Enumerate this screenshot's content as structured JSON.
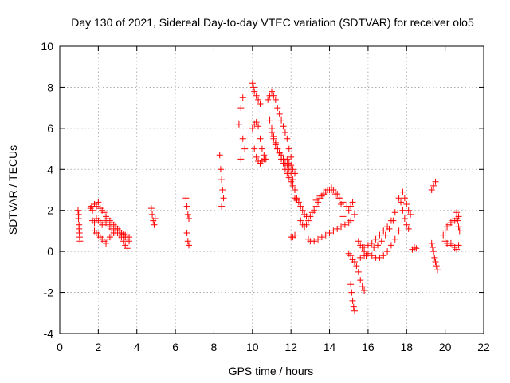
{
  "chart_data": {
    "type": "scatter",
    "title": "Day 130 of 2021, Sidereal Day-to-day VTEC variation (SDTVAR) for receiver olo5",
    "xlabel": "GPS time / hours",
    "ylabel": "SDTVAR / TECUs",
    "xlim": [
      0,
      22
    ],
    "ylim": [
      -4,
      10
    ],
    "xticks": [
      0,
      2,
      4,
      6,
      8,
      10,
      12,
      14,
      16,
      18,
      20,
      22
    ],
    "yticks": [
      -4,
      -2,
      0,
      2,
      4,
      6,
      8,
      10
    ],
    "grid": true,
    "marker": "plus",
    "color": "#ff0000",
    "series": [
      {
        "name": "SDTVAR",
        "x": [
          0.95,
          0.97,
          1.0,
          1.02,
          1.05,
          0.98,
          1.0,
          1.03,
          1.6,
          1.65,
          1.7,
          1.8,
          1.9,
          2.0,
          2.1,
          2.2,
          2.3,
          2.4,
          2.5,
          2.6,
          2.7,
          2.8,
          2.9,
          3.0,
          3.1,
          3.2,
          3.3,
          3.4,
          3.5,
          3.6,
          1.7,
          1.8,
          1.9,
          2.0,
          2.1,
          2.2,
          2.3,
          2.4,
          2.5,
          2.6,
          2.7,
          2.8,
          2.9,
          3.0,
          3.1,
          3.2,
          3.3,
          3.4,
          3.5,
          3.6,
          1.8,
          1.9,
          2.0,
          2.1,
          2.2,
          2.3,
          2.4,
          2.5,
          2.6,
          2.7,
          2.8,
          2.9,
          3.0,
          3.1,
          3.2,
          3.3,
          3.4,
          3.5,
          4.75,
          4.8,
          4.85,
          4.9,
          4.95,
          6.55,
          6.6,
          6.65,
          6.7,
          6.6,
          6.65,
          6.7,
          8.3,
          8.35,
          8.4,
          8.45,
          8.5,
          8.4,
          9.3,
          9.4,
          9.5,
          9.6,
          9.4,
          9.5,
          10.0,
          10.05,
          10.1,
          10.2,
          10.3,
          10.4,
          10.0,
          10.1,
          10.2,
          10.3,
          10.4,
          10.5,
          10.6,
          10.7,
          10.1,
          10.2,
          10.3,
          10.4,
          10.5,
          10.6,
          10.8,
          10.9,
          11.0,
          11.1,
          11.2,
          11.3,
          11.4,
          11.5,
          11.6,
          11.7,
          11.8,
          11.9,
          12.0,
          10.9,
          11.0,
          11.1,
          11.2,
          11.3,
          11.4,
          11.5,
          11.6,
          11.7,
          11.8,
          11.9,
          12.0,
          12.1,
          12.2,
          12.3,
          11.0,
          11.1,
          11.2,
          11.3,
          11.4,
          11.5,
          11.6,
          11.7,
          11.8,
          11.9,
          12.0,
          12.1,
          12.2,
          11.8,
          11.9,
          12.0,
          12.1,
          12.2,
          12.0,
          12.1,
          12.2,
          12.2,
          12.3,
          12.4,
          12.5,
          12.6,
          12.7,
          12.8,
          12.5,
          12.6,
          12.7,
          12.8,
          12.9,
          13.0,
          13.1,
          13.2,
          13.3,
          13.4,
          13.5,
          13.6,
          13.7,
          13.8,
          13.9,
          14.0,
          14.1,
          14.2,
          14.3,
          14.4,
          14.5,
          14.6,
          14.7,
          12.9,
          13.0,
          13.2,
          13.4,
          13.6,
          13.8,
          14.0,
          14.2,
          14.4,
          14.6,
          14.8,
          15.0,
          15.1,
          13.3,
          13.5,
          13.7,
          13.9,
          14.1,
          14.3,
          14.5,
          14.7,
          14.9,
          15.0,
          15.1,
          15.2,
          15.3,
          15.1,
          15.15,
          15.2,
          15.25,
          15.3,
          15.0,
          15.1,
          15.2,
          15.3,
          15.4,
          15.5,
          15.6,
          15.7,
          15.8,
          15.5,
          15.6,
          15.7,
          15.8,
          15.9,
          15.6,
          15.8,
          16.0,
          16.2,
          16.4,
          16.6,
          16.8,
          17.0,
          17.2,
          17.4,
          17.6,
          15.8,
          16.0,
          16.2,
          16.4,
          16.6,
          16.8,
          17.0,
          17.2,
          17.4,
          16.3,
          16.5,
          16.7,
          16.9,
          17.1,
          17.3,
          17.6,
          17.7,
          17.8,
          17.9,
          18.0,
          18.1,
          17.8,
          17.9,
          18.0,
          18.1,
          18.2,
          18.3,
          18.4,
          18.5,
          19.3,
          19.4,
          19.5,
          19.3,
          19.35,
          19.4,
          19.45,
          19.5,
          19.55,
          19.6,
          19.9,
          20.0,
          20.1,
          20.2,
          20.3,
          20.4,
          20.5,
          20.6,
          20.7,
          20.0,
          20.1,
          20.2,
          20.3,
          20.4,
          20.5,
          20.6,
          20.7,
          20.6,
          20.65,
          20.7,
          20.75
        ],
        "y": [
          2.0,
          1.6,
          1.3,
          0.9,
          0.5,
          1.8,
          1.1,
          0.7,
          2.1,
          2.2,
          2.0,
          2.3,
          2.2,
          2.4,
          2.1,
          2.0,
          1.9,
          1.7,
          1.6,
          1.5,
          1.4,
          1.3,
          1.2,
          1.1,
          1.0,
          0.9,
          0.85,
          0.8,
          0.8,
          0.7,
          1.5,
          1.4,
          1.6,
          1.5,
          1.4,
          1.3,
          1.5,
          1.4,
          1.3,
          1.2,
          1.1,
          1.0,
          1.2,
          1.1,
          1.0,
          0.9,
          0.8,
          0.7,
          0.6,
          0.5,
          1.0,
          0.9,
          0.8,
          0.7,
          0.6,
          0.5,
          0.4,
          0.6,
          0.7,
          0.8,
          0.9,
          1.0,
          0.9,
          0.8,
          0.7,
          0.5,
          0.3,
          0.15,
          2.1,
          1.8,
          1.5,
          1.3,
          1.6,
          2.6,
          2.2,
          1.8,
          1.6,
          0.9,
          0.5,
          0.3,
          4.7,
          4.0,
          3.5,
          3.0,
          2.6,
          2.2,
          6.2,
          7.0,
          7.5,
          5.0,
          4.5,
          5.5,
          8.2,
          8.0,
          7.8,
          7.6,
          7.4,
          7.2,
          6.0,
          6.2,
          6.3,
          6.1,
          5.5,
          5.0,
          4.7,
          4.5,
          5.0,
          4.6,
          4.4,
          4.3,
          4.4,
          4.5,
          7.4,
          7.6,
          7.8,
          7.6,
          7.4,
          7.0,
          6.7,
          6.4,
          6.1,
          5.8,
          5.5,
          5.0,
          4.6,
          6.4,
          6.0,
          5.6,
          5.3,
          5.0,
          4.8,
          4.7,
          4.5,
          4.3,
          4.2,
          4.0,
          3.8,
          3.5,
          3.0,
          2.6,
          5.8,
          5.5,
          5.2,
          5.0,
          4.8,
          4.5,
          4.3,
          4.0,
          3.8,
          3.6,
          3.4,
          3.2,
          3.0,
          4.5,
          4.3,
          4.2,
          4.0,
          3.8,
          0.7,
          0.7,
          0.8,
          2.6,
          2.5,
          2.4,
          2.2,
          2.0,
          1.8,
          1.7,
          1.5,
          1.3,
          1.2,
          1.3,
          1.5,
          1.7,
          1.9,
          2.0,
          2.2,
          2.4,
          2.6,
          2.7,
          2.8,
          2.9,
          3.0,
          3.0,
          3.1,
          3.0,
          2.9,
          2.8,
          2.6,
          2.3,
          1.7,
          0.6,
          0.5,
          0.5,
          0.6,
          0.7,
          0.8,
          0.9,
          1.0,
          1.1,
          1.2,
          1.3,
          1.4,
          1.5,
          2.5,
          2.7,
          2.9,
          3.0,
          3.0,
          2.8,
          2.6,
          2.4,
          2.2,
          2.0,
          2.2,
          2.4,
          1.8,
          -1.6,
          -2.0,
          -2.4,
          -2.7,
          -2.9,
          -0.1,
          -0.2,
          -0.4,
          -0.5,
          -0.7,
          -1.0,
          -1.4,
          -1.7,
          -1.9,
          0.5,
          0.3,
          0.2,
          0.0,
          -0.2,
          -0.3,
          -0.2,
          -0.1,
          -0.2,
          -0.3,
          -0.3,
          -0.2,
          0.0,
          0.3,
          0.6,
          1.0,
          0.2,
          0.3,
          0.4,
          0.6,
          0.8,
          1.0,
          1.2,
          1.5,
          1.9,
          0.2,
          0.3,
          0.5,
          0.8,
          1.1,
          1.5,
          2.6,
          2.4,
          2.0,
          1.6,
          1.3,
          1.1,
          2.9,
          2.6,
          2.3,
          2.0,
          1.8,
          0.1,
          0.2,
          0.15,
          3.0,
          3.2,
          3.4,
          0.4,
          0.2,
          0.0,
          -0.3,
          -0.5,
          -0.7,
          -0.9,
          0.8,
          1.0,
          1.2,
          1.3,
          1.4,
          1.5,
          1.5,
          1.6,
          1.7,
          0.5,
          0.4,
          0.3,
          0.4,
          0.3,
          0.2,
          0.1,
          0.3,
          1.9,
          1.5,
          1.2,
          1.0
        ]
      }
    ]
  }
}
